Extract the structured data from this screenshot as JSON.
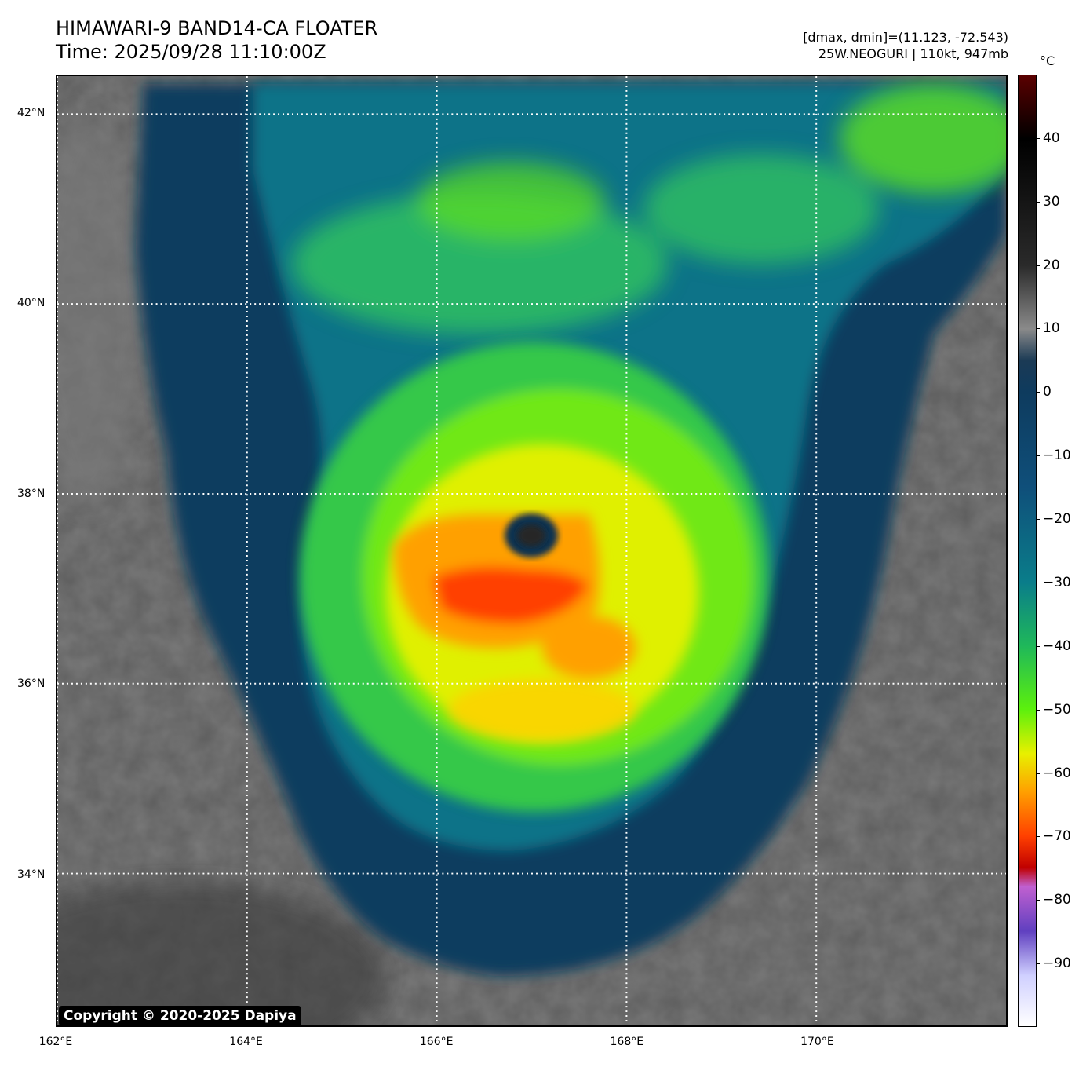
{
  "header": {
    "title_line1": "HIMAWARI-9 BAND14-CA FLOATER",
    "title_line2": "Time: 2025/09/28 11:10:00Z",
    "dmax_dmin": "[dmax, dmin]=(11.123, -72.543)",
    "storm_info": "25W.NEOGURI | 110kt, 947mb"
  },
  "map": {
    "lat_labels": [
      "42°N",
      "40°N",
      "38°N",
      "36°N",
      "34°N"
    ],
    "lat_values": [
      42,
      40,
      38,
      36,
      34
    ],
    "lon_labels": [
      "162°E",
      "164°E",
      "166°E",
      "168°E",
      "170°E"
    ],
    "lon_values": [
      162,
      164,
      166,
      168,
      170
    ],
    "lon_range": [
      162,
      172
    ],
    "lat_range": [
      32.4,
      42.4
    ],
    "storm_center": {
      "lat": 37.6,
      "lon": 167.0
    },
    "copyright": "Copyright © 2020-2025 Dapiya"
  },
  "colorbar": {
    "unit": "°C",
    "range": [
      -100,
      50
    ],
    "tick_labels": [
      "40",
      "30",
      "20",
      "10",
      "0",
      "−10",
      "−20",
      "−30",
      "−40",
      "−50",
      "−60",
      "−70",
      "−80",
      "−90"
    ],
    "tick_values": [
      40,
      30,
      20,
      10,
      0,
      -10,
      -20,
      -30,
      -40,
      -50,
      -60,
      -70,
      -80,
      -90
    ],
    "colors": {
      "c50": "#5a0000",
      "c40": "#000000",
      "c20": "#2a2a2a",
      "c10": "#8a8a8a",
      "c5": "#1b3a55",
      "c0": "#0e3b5e",
      "cm15": "#0f4f7a",
      "cm30": "#0a7d8a",
      "cm40": "#1fb85a",
      "cm50": "#5cf00d",
      "cm57": "#e8f000",
      "cm63": "#ffa000",
      "cm70": "#ff4000",
      "cm75": "#c00000",
      "cm78": "#c060d0",
      "cm85": "#6040c0",
      "cm92": "#d0d0ff",
      "cm100": "#ffffff"
    }
  }
}
